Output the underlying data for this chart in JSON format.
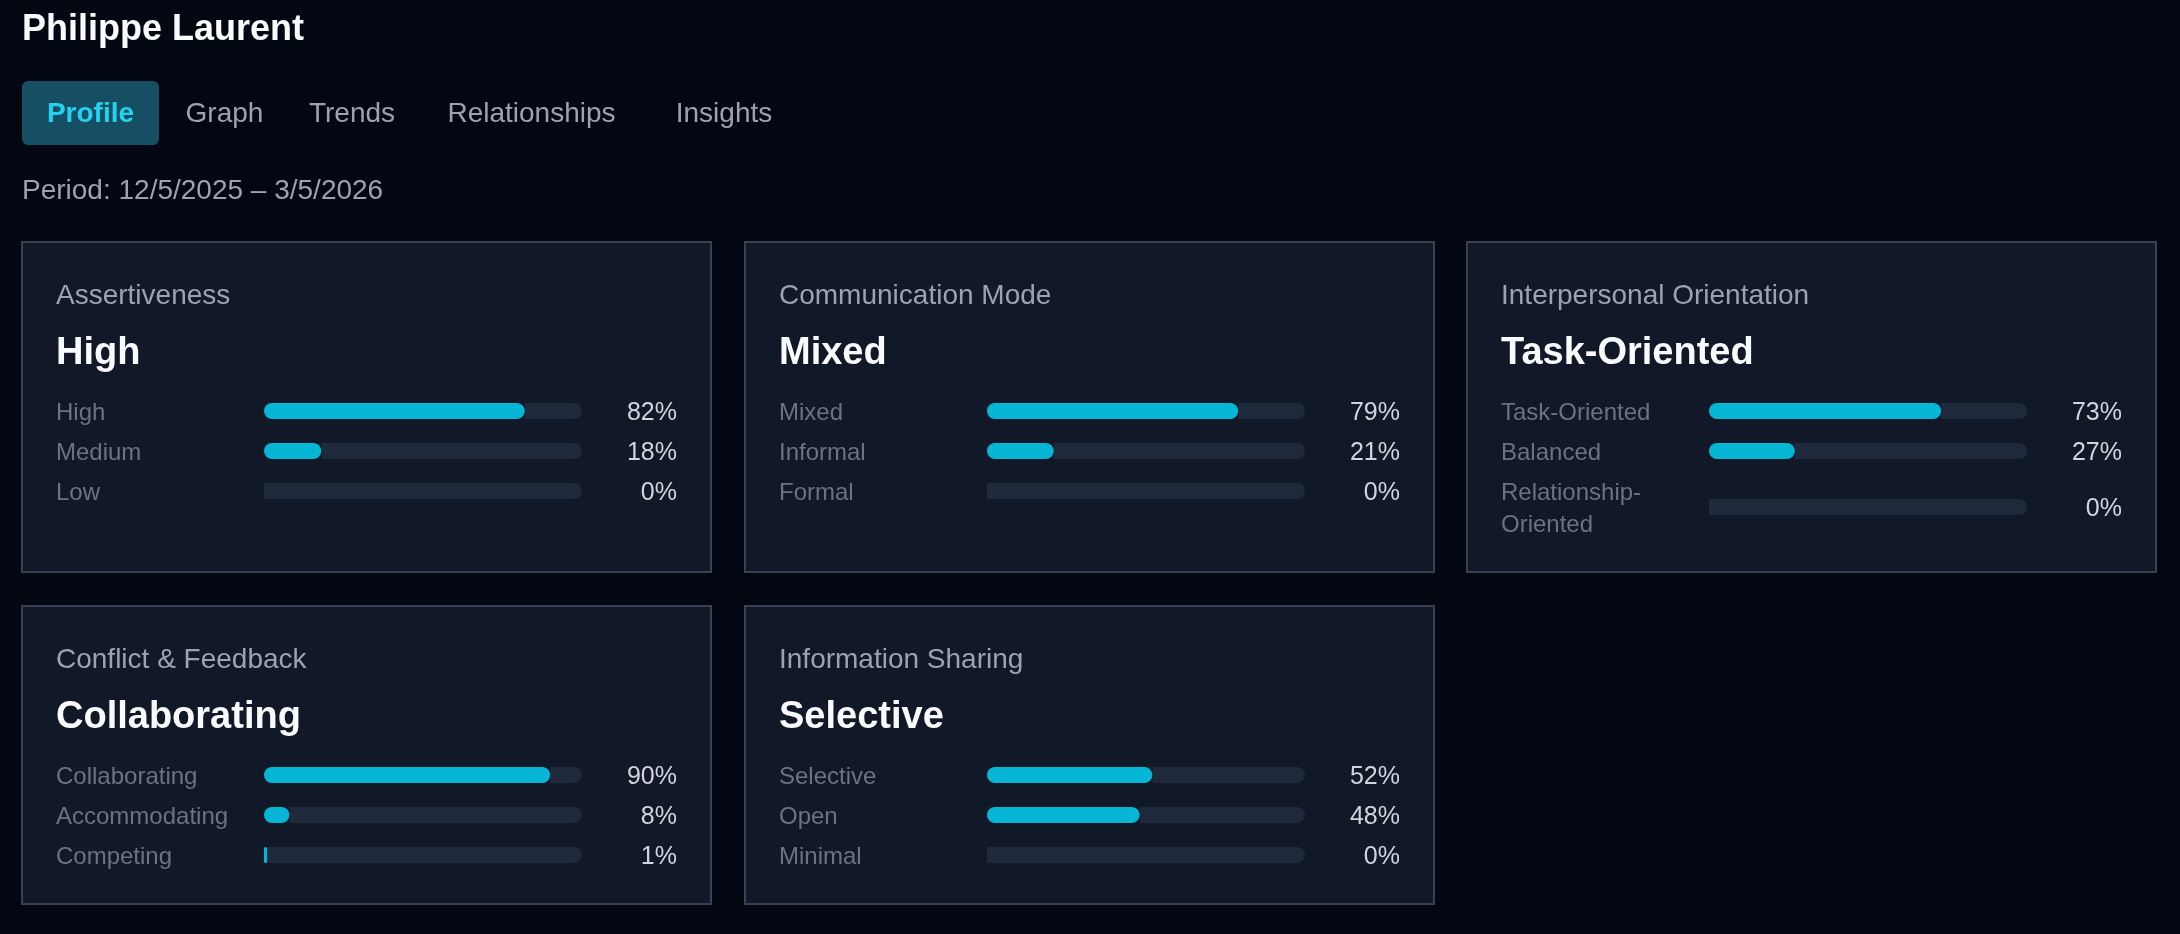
{
  "chart_data": [
    {
      "type": "other",
      "title": "Philippe Laurent",
      "annotations": [
        "Profile",
        "Graph",
        "Trends",
        "Relationships",
        "Insights",
        "Period: 12/5/2025 – 3/5/2026"
      ]
    },
    {
      "type": "bar",
      "orientation": "horizontal",
      "stacked": true,
      "title": "Assertiveness",
      "subtitle": "High",
      "categories": [
        "High",
        "Medium",
        "Low"
      ],
      "series": [
        {
          "color": "#06b6d4",
          "values": [
            82,
            18,
            0
          ],
          "value_labels": [
            "82%",
            "18%",
            "0%"
          ]
        },
        {
          "color": "#1e293b",
          "values": [
            18,
            82,
            100
          ]
        }
      ],
      "xlim": [
        0,
        100
      ],
      "tick_labels": false
    },
    {
      "type": "bar",
      "orientation": "horizontal",
      "stacked": true,
      "title": "Communication Mode",
      "subtitle": "Mixed",
      "categories": [
        "Mixed",
        "Informal",
        "Formal"
      ],
      "series": [
        {
          "color": "#06b6d4",
          "values": [
            79,
            21,
            0
          ],
          "value_labels": [
            "79%",
            "21%",
            "0%"
          ]
        },
        {
          "color": "#1e293b",
          "values": [
            21,
            79,
            100
          ]
        }
      ],
      "xlim": [
        0,
        100
      ],
      "tick_labels": false
    },
    {
      "type": "bar",
      "orientation": "horizontal",
      "stacked": true,
      "title": "Interpersonal Orientation",
      "subtitle": "Task-Oriented",
      "categories": [
        "Task-Oriented",
        "Balanced",
        "Relationship-Oriented"
      ],
      "series": [
        {
          "color": "#06b6d4",
          "values": [
            73,
            27,
            0
          ],
          "value_labels": [
            "73%",
            "27%",
            "0%"
          ]
        },
        {
          "color": "#1e293b",
          "values": [
            27,
            73,
            100
          ]
        }
      ],
      "xlim": [
        0,
        100
      ],
      "tick_labels": false
    },
    {
      "type": "bar",
      "orientation": "horizontal",
      "stacked": true,
      "title": "Conflict & Feedback",
      "subtitle": "Collaborating",
      "categories": [
        "Collaborating",
        "Accommodating",
        "Competing"
      ],
      "series": [
        {
          "color": "#06b6d4",
          "values": [
            90,
            8,
            1
          ],
          "value_labels": [
            "90%",
            "8%",
            "1%"
          ]
        },
        {
          "color": "#1e293b",
          "values": [
            10,
            92,
            99
          ]
        }
      ],
      "xlim": [
        0,
        100
      ],
      "tick_labels": false
    },
    {
      "type": "bar",
      "orientation": "horizontal",
      "stacked": true,
      "title": "Information Sharing",
      "subtitle": "Selective",
      "categories": [
        "Selective",
        "Open",
        "Minimal"
      ],
      "series": [
        {
          "color": "#06b6d4",
          "values": [
            52,
            48,
            0
          ],
          "value_labels": [
            "52%",
            "48%",
            "0%"
          ]
        },
        {
          "color": "#1e293b",
          "values": [
            48,
            52,
            100
          ]
        }
      ],
      "xlim": [
        0,
        100
      ],
      "tick_labels": false
    }
  ]
}
